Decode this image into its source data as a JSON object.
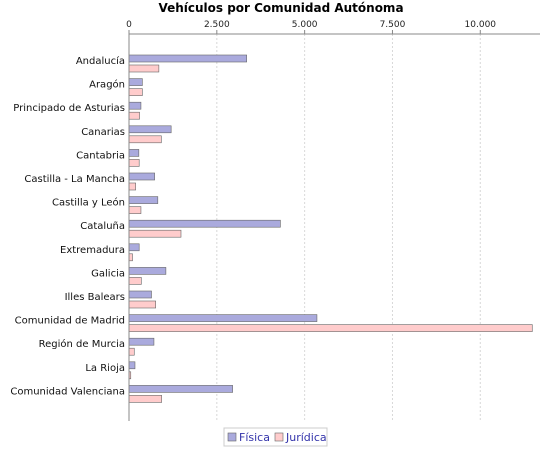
{
  "chart_data": {
    "type": "bar",
    "orientation": "horizontal",
    "title": "Vehículos por Comunidad Autónoma",
    "xlabel": "",
    "ylabel": "",
    "xlim": [
      0,
      11700
    ],
    "ticks": [
      0,
      2500,
      5000,
      7500,
      10000
    ],
    "tick_labels": [
      "0",
      "2.500",
      "5.000",
      "7.500",
      "10.000"
    ],
    "grid": true,
    "legend_position": "bottom",
    "categories": [
      "Andalucía",
      "Aragón",
      "Principado de Asturias",
      "Canarias",
      "Cantabria",
      "Castilla - La Mancha",
      "Castilla y León",
      "Cataluña",
      "Extremadura",
      "Galicia",
      "Illes Balears",
      "Comunidad de Madrid",
      "Región de Murcia",
      "La Rioja",
      "Comunidad Valenciana"
    ],
    "series": [
      {
        "name": "Física",
        "color": "#aaaadd",
        "values": [
          3350,
          380,
          340,
          1200,
          280,
          730,
          820,
          4310,
          290,
          1050,
          640,
          5350,
          710,
          170,
          2950
        ]
      },
      {
        "name": "Jurídica",
        "color": "#ffcccc",
        "values": [
          850,
          380,
          300,
          920,
          290,
          190,
          340,
          1480,
          100,
          350,
          760,
          11480,
          150,
          50,
          930
        ]
      }
    ]
  }
}
